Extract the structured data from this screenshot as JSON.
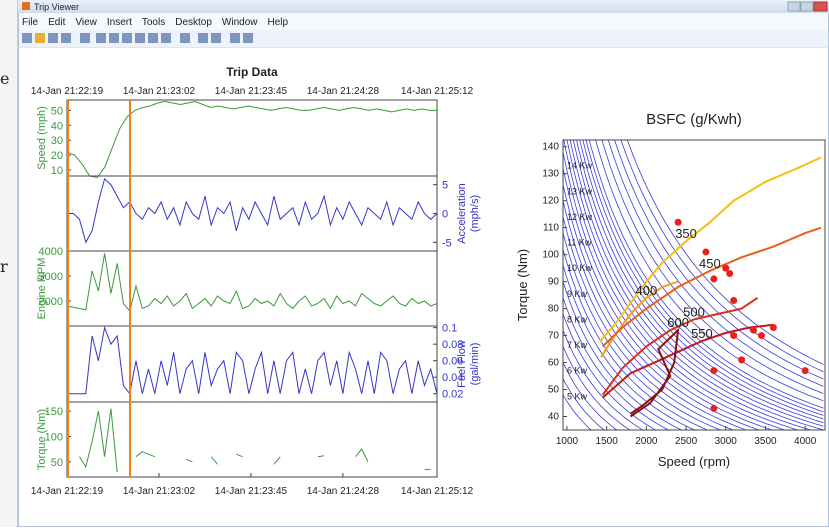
{
  "background_fragments": [
    "e",
    "r"
  ],
  "window": {
    "title": "Trip Viewer"
  },
  "menu": [
    "File",
    "Edit",
    "View",
    "Insert",
    "Tools",
    "Desktop",
    "Window",
    "Help"
  ],
  "chart_data": [
    {
      "type": "line",
      "title": "Trip Data",
      "xticks": [
        "14-Jan 21:22:19",
        "14-Jan 21:23:02",
        "14-Jan 21:23:45",
        "14-Jan 21:24:28",
        "14-Jan 21:25:12"
      ],
      "panels": [
        {
          "ylabel": [
            "Speed (mph)"
          ],
          "side": "left",
          "color": "#3a9a3a",
          "ylim": [
            6,
            57
          ],
          "yticks": [
            10,
            20,
            30,
            40,
            50
          ],
          "values": [
            22,
            20,
            14,
            6,
            5,
            12,
            25,
            38,
            46,
            50,
            52,
            53,
            55,
            56,
            55,
            54,
            55,
            56,
            54,
            52,
            53,
            52,
            51,
            52,
            53,
            52,
            51,
            50,
            51,
            52,
            51,
            50,
            50,
            51,
            52,
            51,
            50,
            51,
            52,
            51,
            50,
            51,
            50,
            49,
            50,
            51,
            50,
            51,
            50,
            50
          ]
        },
        {
          "ylabel": [
            "Acceleration",
            "(mph/s)"
          ],
          "side": "right",
          "color": "#3535c8",
          "ylim": [
            -6.5,
            6.5
          ],
          "yticks": [
            -5,
            0,
            5
          ],
          "values": [
            0,
            0,
            -1,
            -5,
            -3,
            2,
            6,
            5,
            3,
            1,
            2,
            0,
            -1,
            1,
            0,
            2,
            -1,
            1,
            -2,
            2,
            0,
            -1,
            3,
            -2,
            1,
            0,
            2,
            -3,
            1,
            -1,
            2,
            0,
            -2,
            3,
            -1,
            0,
            1,
            -2,
            2,
            -1,
            0,
            3,
            -2,
            1,
            -1,
            2,
            0,
            -2,
            1,
            0,
            -1,
            2,
            -2,
            1,
            0,
            -1,
            2,
            0,
            -1,
            0
          ]
        },
        {
          "ylabel": [
            "Engine RPM"
          ],
          "side": "left",
          "color": "#3a9a3a",
          "ylim": [
            1000,
            4000
          ],
          "yticks": [
            2000,
            3000,
            4000
          ],
          "values": [
            1800,
            1750,
            1700,
            1650,
            3200,
            2400,
            3900,
            2300,
            3500,
            1900,
            1600,
            2600,
            1700,
            1800,
            2100,
            1900,
            2200,
            1800,
            2000,
            2300,
            1700,
            1900,
            2100,
            1800,
            2200,
            2000,
            1900,
            2400,
            1700,
            1800,
            2100,
            1900,
            2000,
            1800,
            2300,
            1900,
            1700,
            2000,
            2200,
            1800,
            1900,
            2100,
            1700,
            2200,
            1900,
            2000,
            1800,
            2300,
            2100,
            1900,
            1800,
            2000,
            2200,
            1900,
            1800,
            2100,
            1900,
            2000,
            1800,
            1900
          ]
        },
        {
          "ylabel": [
            "Fuel Flow",
            "(gal/min)"
          ],
          "side": "right",
          "color": "#3535c8",
          "ylim": [
            0.01,
            0.102
          ],
          "yticks": [
            0.02,
            0.04,
            0.06,
            0.08,
            0.1
          ],
          "values": [
            0.02,
            0.02,
            0.02,
            0.02,
            0.09,
            0.06,
            0.1,
            0.08,
            0.09,
            0.03,
            0.02,
            0.06,
            0.02,
            0.05,
            0.02,
            0.06,
            0.03,
            0.07,
            0.02,
            0.05,
            0.06,
            0.02,
            0.07,
            0.03,
            0.05,
            0.06,
            0.02,
            0.07,
            0.06,
            0.02,
            0.05,
            0.07,
            0.02,
            0.06,
            0.02,
            0.06,
            0.07,
            0.02,
            0.05,
            0.02,
            0.06,
            0.07,
            0.03,
            0.06,
            0.02,
            0.07,
            0.05,
            0.02,
            0.06,
            0.02,
            0.07,
            0.06,
            0.02,
            0.05,
            0.06,
            0.02,
            0.06,
            0.03,
            0.05,
            0.02
          ]
        },
        {
          "ylabel": [
            "Torque (Nm)"
          ],
          "side": "left",
          "color": "#3a9a3a",
          "ylim": [
            20,
            168
          ],
          "yticks": [
            50,
            100,
            150
          ],
          "values": [
            null,
            null,
            60,
            40,
            90,
            150,
            60,
            155,
            30,
            null,
            null,
            60,
            70,
            65,
            60,
            null,
            50,
            null,
            null,
            55,
            50,
            null,
            null,
            60,
            45,
            null,
            null,
            65,
            60,
            null,
            55,
            null,
            null,
            45,
            60,
            null,
            null,
            50,
            null,
            null,
            60,
            62,
            null,
            null,
            30,
            null,
            60,
            75,
            50,
            null,
            null,
            55,
            null,
            null,
            40,
            null,
            null,
            35,
            35,
            null
          ]
        }
      ]
    },
    {
      "type": "contour",
      "title": "BSFC (g/Kwh)",
      "xlabel": "Speed (rpm)",
      "ylabel": "Torque (Nm)",
      "xlim": [
        950,
        4250
      ],
      "ylim": [
        35,
        142.5
      ],
      "xticks": [
        1000,
        1500,
        2000,
        2500,
        3000,
        3500,
        4000
      ],
      "yticks": [
        40,
        50,
        60,
        70,
        80,
        90,
        100,
        110,
        120,
        130,
        140
      ],
      "power_lines": [
        4,
        4.5,
        5,
        5.5,
        6,
        6.5,
        7,
        7.5,
        8,
        8.5,
        9,
        9.5,
        10,
        10.5,
        11,
        11.5,
        12,
        12.5,
        13,
        13.5,
        14,
        14.5,
        15,
        15.5,
        16,
        17,
        18,
        19,
        20,
        21,
        22
      ],
      "power_color": "#3a3ae0",
      "power_labels": [
        {
          "kw": 14,
          "label": "14 Kw"
        },
        {
          "kw": 13,
          "label": "13 Kw"
        },
        {
          "kw": 12,
          "label": "12 Kw"
        },
        {
          "kw": 11,
          "label": "11 Kw"
        },
        {
          "kw": 10,
          "label": "10 Kw"
        },
        {
          "kw": 9,
          "label": "9 Kw"
        },
        {
          "kw": 8,
          "label": "8 Kw"
        },
        {
          "kw": 7,
          "label": "7 Kw"
        },
        {
          "kw": 6,
          "label": "6 Kw"
        },
        {
          "kw": 5,
          "label": "5 Kw"
        }
      ],
      "series": [
        {
          "name": "350",
          "color": "#f5c010",
          "x": [
            1420,
            1600,
            1800,
            2000,
            2200,
            2500,
            2800,
            3100,
            3500,
            3900,
            4200
          ],
          "y": [
            68,
            74,
            82,
            90,
            97,
            105,
            112,
            120,
            127,
            132,
            136
          ]
        },
        {
          "name": "400",
          "color": "#f0a020",
          "x": [
            1430,
            1600,
            1800,
            2000,
            2200,
            2400
          ],
          "y": [
            62,
            70,
            78,
            84,
            88,
            90
          ]
        },
        {
          "name": "450",
          "color": "#e86018",
          "x": [
            1450,
            1700,
            2000,
            2400,
            2800,
            3200,
            3600,
            4000,
            4200
          ],
          "y": [
            66,
            73,
            80,
            88,
            94,
            99,
            103,
            108,
            110
          ]
        },
        {
          "name": "500",
          "color": "#d83010",
          "x": [
            1450,
            1700,
            2000,
            2300,
            2600,
            2900,
            3200,
            3400
          ],
          "y": [
            48,
            58,
            66,
            72,
            76,
            78,
            80,
            84
          ]
        },
        {
          "name": "550",
          "color": "#c01818",
          "x": [
            1450,
            1800,
            2100,
            2400,
            2700,
            3000,
            3300,
            3600
          ],
          "y": [
            47,
            56,
            60,
            64,
            68,
            71,
            73,
            74
          ]
        },
        {
          "name": "600",
          "color": "#8b1010",
          "x": [
            1800,
            2050,
            2300,
            2150,
            2400,
            2350,
            2200,
            1950,
            1800
          ],
          "y": [
            40,
            45,
            55,
            65,
            72,
            60,
            50,
            44,
            41
          ]
        }
      ],
      "points": {
        "color": "#e82020",
        "x": [
          2400,
          2750,
          2850,
          3000,
          3050,
          3100,
          3350,
          3600,
          3450,
          4000,
          2850,
          2850,
          3200,
          3100
        ],
        "y": [
          112,
          101,
          91,
          95,
          93,
          83,
          72,
          73,
          70,
          57,
          57,
          43,
          61,
          70
        ]
      }
    }
  ]
}
